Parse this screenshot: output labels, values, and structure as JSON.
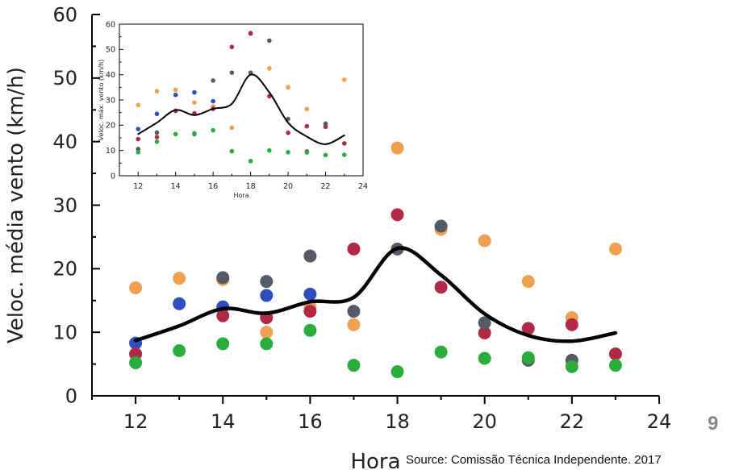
{
  "chart_data": [
    {
      "type": "scatter",
      "title": "",
      "xlabel": "Hora",
      "ylabel": "Veloc. média vento (km/h)",
      "xlim": [
        11,
        24
      ],
      "ylim": [
        0,
        60
      ],
      "xticks": [
        12,
        14,
        16,
        18,
        20,
        22,
        24
      ],
      "yticks": [
        0,
        10,
        20,
        30,
        40,
        50,
        60
      ],
      "grid": false,
      "series": [
        {
          "color": "#f0a050",
          "points": [
            [
              12,
              17
            ],
            [
              13,
              18.5
            ],
            [
              14,
              18.3
            ],
            [
              15,
              10
            ],
            [
              16,
              14
            ],
            [
              17,
              11.2
            ],
            [
              18,
              39
            ],
            [
              19,
              26.2
            ],
            [
              20,
              24.4
            ],
            [
              21,
              18
            ],
            [
              22,
              12.3
            ],
            [
              23,
              23.1
            ]
          ]
        },
        {
          "color": "#2d4fbd",
          "points": [
            [
              12,
              8.3
            ],
            [
              13,
              14.5
            ],
            [
              14,
              14
            ],
            [
              15,
              15.8
            ],
            [
              16,
              16
            ]
          ]
        },
        {
          "color": "#b02a45",
          "points": [
            [
              12,
              6.6
            ],
            [
              14,
              12.6
            ],
            [
              15,
              12.3
            ],
            [
              16,
              13.3
            ],
            [
              17,
              23.1
            ],
            [
              18,
              28.5
            ],
            [
              19,
              17.1
            ],
            [
              20,
              9.9
            ],
            [
              21,
              10.6
            ],
            [
              22,
              11.2
            ],
            [
              23,
              6.6
            ]
          ]
        },
        {
          "color": "#555a66",
          "points": [
            [
              14,
              18.6
            ],
            [
              15,
              18
            ],
            [
              16,
              22
            ],
            [
              17,
              13.3
            ],
            [
              18,
              23.1
            ],
            [
              19,
              26.7
            ],
            [
              20,
              11.5
            ],
            [
              21,
              5.6
            ],
            [
              22,
              5.6
            ]
          ]
        },
        {
          "color": "#2aad3c",
          "points": [
            [
              12,
              5.2
            ],
            [
              13,
              7.1
            ],
            [
              14,
              8.2
            ],
            [
              15,
              8.2
            ],
            [
              16,
              10.3
            ],
            [
              17,
              4.8
            ],
            [
              18,
              3.8
            ],
            [
              19,
              6.9
            ],
            [
              20,
              5.9
            ],
            [
              21,
              6
            ],
            [
              22,
              4.6
            ],
            [
              23,
              4.8
            ]
          ]
        }
      ],
      "line": {
        "color": "#000000",
        "x": [
          12,
          13,
          14,
          15,
          16,
          17,
          18,
          19,
          20,
          21,
          22,
          23
        ],
        "y": [
          8.7,
          11,
          13.7,
          13,
          14.8,
          15.5,
          23.2,
          19,
          12.9,
          9.5,
          8.6,
          9.9
        ]
      }
    },
    {
      "type": "scatter",
      "title": "",
      "xlabel": "Hora",
      "ylabel": "Veloc. máx. vento (km/h)",
      "xlim": [
        11,
        24
      ],
      "ylim": [
        0,
        60
      ],
      "xticks": [
        12,
        14,
        16,
        18,
        20,
        22,
        24
      ],
      "yticks": [
        0,
        10,
        20,
        30,
        40,
        50,
        60
      ],
      "grid": false,
      "series": [
        {
          "color": "#f0a050",
          "points": [
            [
              12,
              28
            ],
            [
              13,
              33.5
            ],
            [
              14,
              34
            ],
            [
              15,
              29
            ],
            [
              16,
              27.4
            ],
            [
              17,
              19
            ],
            [
              18,
              56.6
            ],
            [
              19,
              42.5
            ],
            [
              20,
              35
            ],
            [
              21,
              26.4
            ],
            [
              22,
              20.3
            ],
            [
              23,
              38
            ]
          ]
        },
        {
          "color": "#2d4fbd",
          "points": [
            [
              12,
              18.5
            ],
            [
              13,
              24.5
            ],
            [
              14,
              32
            ],
            [
              15,
              33
            ],
            [
              16,
              29.5
            ]
          ]
        },
        {
          "color": "#b02a45",
          "points": [
            [
              12,
              14.5
            ],
            [
              13,
              15.3
            ],
            [
              14,
              25.7
            ],
            [
              15,
              24.7
            ],
            [
              16,
              26.5
            ],
            [
              17,
              51
            ],
            [
              18,
              56.3
            ],
            [
              19,
              31.5
            ],
            [
              20,
              17
            ],
            [
              21,
              19.6
            ],
            [
              22,
              19.4
            ],
            [
              23,
              12.8
            ]
          ]
        },
        {
          "color": "#555a66",
          "points": [
            [
              12,
              10.6
            ],
            [
              13,
              17.1
            ],
            [
              15,
              16.5
            ],
            [
              16,
              37.7
            ],
            [
              17,
              40.8
            ],
            [
              18,
              40.8
            ],
            [
              19,
              53.5
            ],
            [
              20,
              22.5
            ],
            [
              21,
              9.6
            ],
            [
              22,
              20.6
            ]
          ]
        },
        {
          "color": "#2aad3c",
          "points": [
            [
              12,
              9.3
            ],
            [
              13,
              13.5
            ],
            [
              14,
              16.5
            ],
            [
              15,
              16.8
            ],
            [
              16,
              18
            ],
            [
              17,
              9.7
            ],
            [
              18,
              5.8
            ],
            [
              19,
              10
            ],
            [
              20,
              9.3
            ],
            [
              21,
              9.2
            ],
            [
              22,
              8.2
            ],
            [
              23,
              8.3
            ]
          ]
        }
      ],
      "line": {
        "color": "#000000",
        "x": [
          12,
          13,
          14,
          15,
          16,
          17,
          18,
          19,
          20,
          21,
          22,
          23
        ],
        "y": [
          16.5,
          21,
          26,
          24,
          26.5,
          28.5,
          40,
          33,
          21,
          15.5,
          12.5,
          16
        ]
      }
    }
  ],
  "page": {
    "number": "9",
    "source": "Source: Comissão Técnica Independente. 2017"
  }
}
